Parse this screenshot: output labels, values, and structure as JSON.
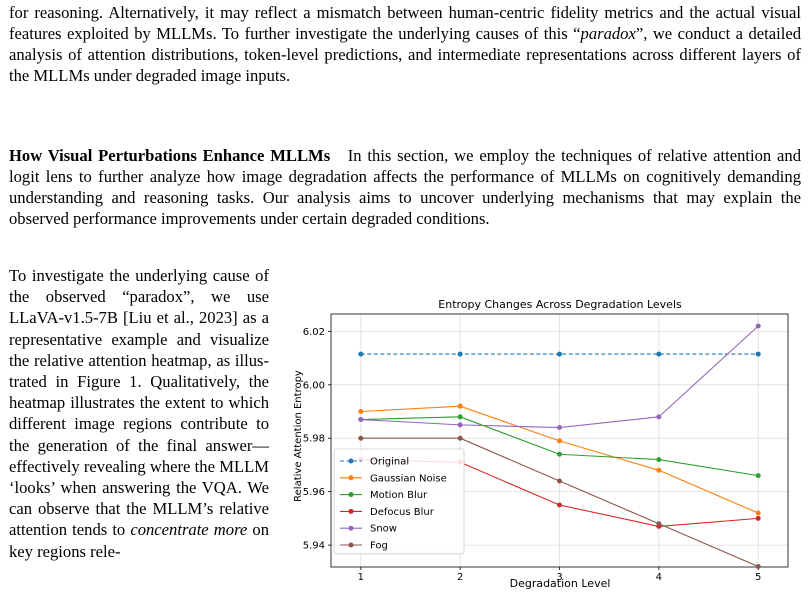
{
  "paragraph1": {
    "part1": "for reasoning. Alternatively, it may reflect a mismatch between human-centric fidelity metrics and the actual visual features exploited by MLLMs. To further investigate the underlying causes of this “",
    "italic": "paradox",
    "part2": "”, we conduct a detailed analysis of attention distributions, token-level predictions, and intermediate representations across different layers of the MLLMs under degraded image inputs."
  },
  "paragraph2": {
    "heading": "How Visual Perturbations Enhance MLLMs",
    "body": "In this section, we employ the techniques of relative attention and logit lens to further analyze how image degradation affects the performance of MLLMs on cognitively demanding understanding and reasoning tasks. Our analysis aims to uncover underlying mechanisms that may explain the observed performance improvements under certain degraded conditions."
  },
  "paragraph3": {
    "part1": "To investigate the underlying cause of the observed “paradox”, we use LLaVA-v1.5-7B [Liu et al., 2023] as a representative example and visualize the rela­tive attention heatmap, as illus­trated in Figure 1. Qualitatively, the heatmap illustrates the extent to which different image regions contribute to the generation of the final answer—effectively re­vealing where the MLLM ‘looks’ when answering the VQA. We can observe that the MLLM’s rel­ative attention tends to ",
    "italic": "concen­trate more",
    "part2": " on key regions rele-"
  },
  "chart_data": {
    "type": "line",
    "title": "Entropy Changes Across Degradation Levels",
    "xlabel": "Degradation Level",
    "ylabel": "Relative Attention Entropy",
    "x": [
      1,
      2,
      3,
      4,
      5
    ],
    "xlim": [
      0.7,
      5.3
    ],
    "ylim": [
      5.9318,
      6.0265
    ],
    "xticks": [
      "1",
      "2",
      "3",
      "4",
      "5"
    ],
    "yticks": [
      "5.94",
      "5.96",
      "5.98",
      "6.00",
      "6.02"
    ],
    "ytick_values": [
      5.94,
      5.96,
      5.98,
      6.0,
      6.02
    ],
    "grid": true,
    "legend_position": "lower-left",
    "series": [
      {
        "name": "Original",
        "color": "#1f77b4",
        "dashed": true,
        "values": [
          6.0115,
          6.0115,
          6.0115,
          6.0115,
          6.0115
        ]
      },
      {
        "name": "Gaussian Noise",
        "color": "#ff7f0e",
        "dashed": false,
        "values": [
          5.99,
          5.992,
          5.979,
          5.968,
          5.952
        ]
      },
      {
        "name": "Motion Blur",
        "color": "#2ca02c",
        "dashed": false,
        "values": [
          5.987,
          5.988,
          5.974,
          5.972,
          5.966
        ]
      },
      {
        "name": "Defocus Blur",
        "color": "#d62728",
        "dashed": false,
        "values": [
          5.972,
          5.971,
          5.955,
          5.947,
          5.95
        ]
      },
      {
        "name": "Snow",
        "color": "#9467bd",
        "dashed": false,
        "values": [
          5.987,
          5.985,
          5.984,
          5.988,
          6.022
        ]
      },
      {
        "name": "Fog",
        "color": "#8c564b",
        "dashed": false,
        "values": [
          5.98,
          5.98,
          5.964,
          5.948,
          5.932
        ]
      }
    ]
  }
}
